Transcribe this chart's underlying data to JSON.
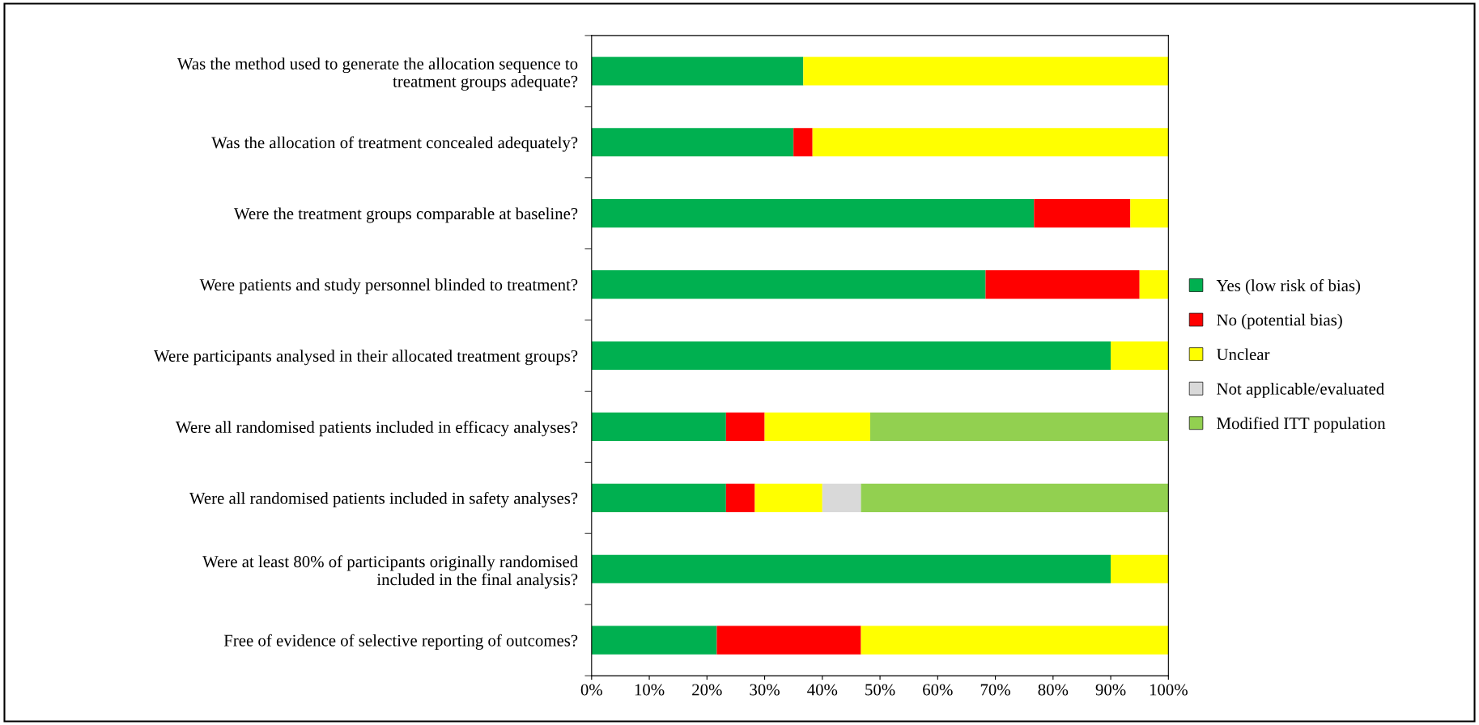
{
  "chart_data": {
    "type": "bar",
    "orientation": "horizontal",
    "stacked": true,
    "categories": [
      "Was the method used to generate the allocation sequence to\ntreatment groups adequate?",
      "Was the allocation of treatment concealed adequately?",
      "Were the treatment groups comparable at baseline?",
      "Were patients and study personnel blinded to treatment?",
      "Were participants analysed in their allocated treatment groups?",
      "Were all randomised patients included in efficacy analyses?",
      "Were all randomised patients included in safety analyses?",
      "Were at least 80% of participants originally randomised\nincluded in the final analysis?",
      "Free of evidence of selective reporting of outcomes?"
    ],
    "series": [
      {
        "name": "Yes (low risk of bias)",
        "color": "#00b050",
        "values": [
          36.7,
          35.0,
          76.7,
          68.3,
          90.0,
          23.3,
          23.3,
          90.0,
          21.7
        ]
      },
      {
        "name": "No (potential bias)",
        "color": "#ff0000",
        "values": [
          0,
          3.3,
          16.7,
          26.7,
          0,
          6.7,
          5.0,
          0,
          25.0
        ]
      },
      {
        "name": "Unclear",
        "color": "#ffff00",
        "values": [
          63.3,
          61.7,
          6.6,
          5.0,
          10.0,
          18.3,
          11.7,
          10.0,
          53.3
        ]
      },
      {
        "name": "Not applicable/evaluated",
        "color": "#d9d9d9",
        "values": [
          0,
          0,
          0,
          0,
          0,
          0,
          6.7,
          0,
          0
        ]
      },
      {
        "name": "Modified ITT population",
        "color": "#92d050",
        "values": [
          0,
          0,
          0,
          0,
          0,
          51.7,
          53.3,
          0,
          0
        ]
      }
    ],
    "xlim": [
      0,
      100
    ],
    "xticks": [
      {
        "value": 0,
        "label": "0%"
      },
      {
        "value": 10,
        "label": "10%"
      },
      {
        "value": 20,
        "label": "20%"
      },
      {
        "value": 30,
        "label": "30%"
      },
      {
        "value": 40,
        "label": "40%"
      },
      {
        "value": 50,
        "label": "50%"
      },
      {
        "value": 60,
        "label": "60%"
      },
      {
        "value": 70,
        "label": "70%"
      },
      {
        "value": 80,
        "label": "80%"
      },
      {
        "value": 90,
        "label": "90%"
      },
      {
        "value": 100,
        "label": "100%"
      }
    ],
    "grid": false,
    "legend": "right"
  }
}
